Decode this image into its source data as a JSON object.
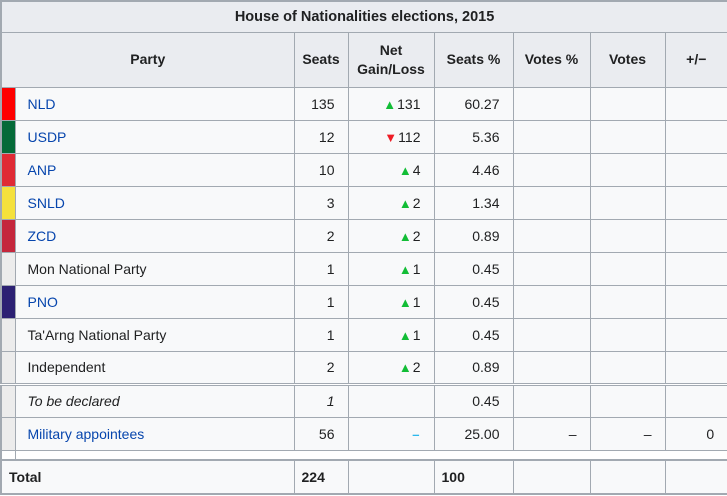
{
  "title": "House of Nationalities elections, 2015",
  "columns": {
    "party": "Party",
    "seats": "Seats",
    "net": "Net Gain/Loss",
    "seats_pct": "Seats %",
    "votes_pct": "Votes %",
    "votes": "Votes",
    "plus_minus": "+/−"
  },
  "symbols": {
    "up": "▲",
    "down": "▼",
    "steady": "–"
  },
  "colors": {
    "increase": "#12bd36",
    "decrease": "#ee1c25",
    "steady": "#2cb8ec",
    "link": "#0645ad",
    "header_bg": "#eaecf0",
    "cell_bg": "#f8f9fa",
    "border": "#a2a9b1"
  },
  "rows": [
    {
      "party": "NLD",
      "link": true,
      "color": "#fe0000",
      "seats": "135",
      "dir": "up",
      "net": "131",
      "seats_pct": "60.27"
    },
    {
      "party": "USDP",
      "link": true,
      "color": "#046a38",
      "seats": "12",
      "dir": "down",
      "net": "112",
      "seats_pct": "5.36"
    },
    {
      "party": "ANP",
      "link": true,
      "color": "#df2a35",
      "seats": "10",
      "dir": "up",
      "net": "4",
      "seats_pct": "4.46"
    },
    {
      "party": "SNLD",
      "link": true,
      "color": "#f5e13c",
      "seats": "3",
      "dir": "up",
      "net": "2",
      "seats_pct": "1.34"
    },
    {
      "party": "ZCD",
      "link": true,
      "color": "#c4273c",
      "seats": "2",
      "dir": "up",
      "net": "2",
      "seats_pct": "0.89"
    },
    {
      "party": "Mon National Party",
      "link": false,
      "color": "",
      "seats": "1",
      "dir": "up",
      "net": "1",
      "seats_pct": "0.45"
    },
    {
      "party": "PNO",
      "link": true,
      "color": "#2c2173",
      "seats": "1",
      "dir": "up",
      "net": "1",
      "seats_pct": "0.45"
    },
    {
      "party": "Ta'Arng National Party",
      "link": false,
      "color": "",
      "seats": "1",
      "dir": "up",
      "net": "1",
      "seats_pct": "0.45"
    },
    {
      "party": "Independent",
      "link": false,
      "color": "",
      "seats": "2",
      "dir": "up",
      "net": "2",
      "seats_pct": "0.89"
    },
    {
      "party": "To be declared",
      "link": false,
      "color": "",
      "italic": true,
      "sep_top": true,
      "seats": "1",
      "seats_pct": "0.45"
    },
    {
      "party": "Military appointees",
      "link": true,
      "color": "",
      "seats": "56",
      "dir": "steady",
      "net": "",
      "seats_pct": "25.00",
      "votes_pct": "–",
      "votes": "–",
      "pm": "0"
    }
  ],
  "total": {
    "label": "Total",
    "seats": "224",
    "seats_pct": "100"
  }
}
